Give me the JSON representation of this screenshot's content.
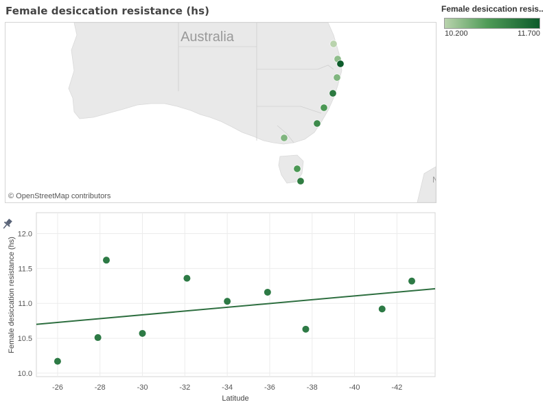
{
  "title": "Female desiccation resistance (hs)",
  "legend": {
    "title": "Female desiccation resis..",
    "min_label": "10.200",
    "max_label": "11.700",
    "colors": {
      "low": "#b9d3ad",
      "mid": "#4f9b57",
      "high": "#0d5b2b"
    }
  },
  "map": {
    "country_label": "Australia",
    "credit": "© OpenStreetMap contributors",
    "points": [
      {
        "lat": -25.9,
        "value": 10.2
      },
      {
        "lat": -26.7,
        "value": 10.5
      },
      {
        "lat": -27.4,
        "value": 11.7
      },
      {
        "lat": -28.2,
        "value": 10.6
      },
      {
        "lat": -30.4,
        "value": 11.35
      },
      {
        "lat": -32.1,
        "value": 11.0
      },
      {
        "lat": -33.7,
        "value": 11.15
      },
      {
        "lat": -35.3,
        "value": 10.6
      },
      {
        "lat": -37.1,
        "value": 10.9
      },
      {
        "lat": -41.3,
        "value": 11.0
      },
      {
        "lat": -42.8,
        "value": 11.3
      }
    ]
  },
  "chart_data": {
    "type": "scatter",
    "xlabel": "Latitude",
    "ylabel": "Female desiccation resistance (hs)",
    "xlim": [
      -25,
      -43.8
    ],
    "ylim": [
      9.95,
      12.3
    ],
    "xticks": [
      -26,
      -28,
      -30,
      -32,
      -34,
      -36,
      -38,
      -40,
      -42
    ],
    "xtick_labels": [
      "-26",
      "-28",
      "-30",
      "-32",
      "-34",
      "-36",
      "-38",
      "-40",
      "-42"
    ],
    "yticks": [
      10.0,
      10.5,
      11.0,
      11.5,
      12.0
    ],
    "ytick_labels": [
      "10.0",
      "10.5",
      "11.0",
      "11.5",
      "12.0"
    ],
    "grid": true,
    "point_color": "#2d7a45",
    "points": [
      {
        "x": -26.0,
        "y": 10.17
      },
      {
        "x": -27.9,
        "y": 10.51
      },
      {
        "x": -28.3,
        "y": 11.62
      },
      {
        "x": -30.0,
        "y": 10.57
      },
      {
        "x": -32.1,
        "y": 11.36
      },
      {
        "x": -34.0,
        "y": 11.03
      },
      {
        "x": -35.9,
        "y": 11.16
      },
      {
        "x": -37.7,
        "y": 10.63
      },
      {
        "x": -41.3,
        "y": 10.92
      },
      {
        "x": -42.7,
        "y": 11.32
      }
    ],
    "trend_line": {
      "x": [
        -25,
        -43.8
      ],
      "y": [
        10.7,
        11.21
      ],
      "color": "#2d6e3f"
    }
  }
}
